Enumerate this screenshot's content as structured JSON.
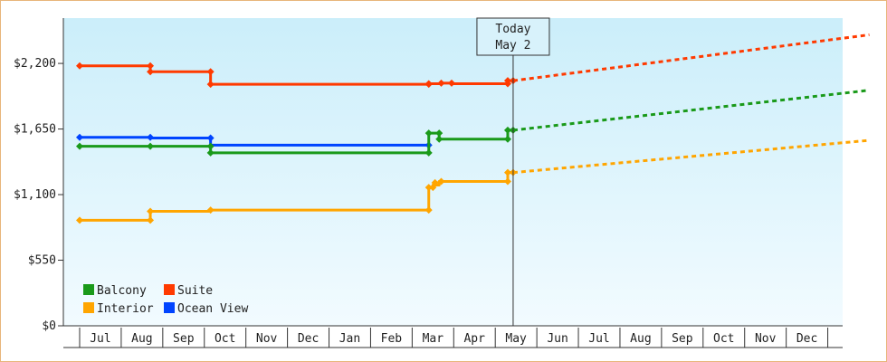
{
  "chart_data": {
    "type": "line",
    "title": "",
    "xlabel": "",
    "ylabel": "",
    "ylim": [
      0,
      2580
    ],
    "yticks": [
      {
        "value": 0,
        "label": "$0"
      },
      {
        "value": 550,
        "label": "$550"
      },
      {
        "value": 1100,
        "label": "$1,100"
      },
      {
        "value": 1650,
        "label": "$1,650"
      },
      {
        "value": 2200,
        "label": "$2,200"
      }
    ],
    "months": [
      "Jul",
      "Aug",
      "Sep",
      "Oct",
      "Nov",
      "Dec",
      "Jan",
      "Feb",
      "Mar",
      "Apr",
      "May",
      "Jun",
      "Jul",
      "Aug",
      "Sep",
      "Oct",
      "Nov",
      "Dec"
    ],
    "x_unit": "months",
    "today": {
      "label_line1": "Today",
      "label_line2": "May 2",
      "x": 9.93
    },
    "legend_position": "bottom-left",
    "grid": false,
    "colors": {
      "Balcony": "#1a9a1a",
      "Suite": "#ff3a00",
      "Interior": "#ffa500",
      "Ocean View": "#0044ff"
    },
    "series": [
      {
        "name": "Suite",
        "history": [
          [
            -0.5,
            2180
          ],
          [
            1.2,
            2180
          ],
          [
            1.2,
            2130
          ],
          [
            2.65,
            2130
          ],
          [
            2.65,
            2025
          ],
          [
            7.9,
            2025
          ],
          [
            7.9,
            2030
          ],
          [
            8.2,
            2030
          ],
          [
            8.2,
            2035
          ],
          [
            8.45,
            2035
          ],
          [
            8.45,
            2030
          ],
          [
            9.8,
            2030
          ],
          [
            9.8,
            2055
          ],
          [
            9.93,
            2055
          ]
        ],
        "markers": [
          [
            -0.5,
            2180
          ],
          [
            1.2,
            2180
          ],
          [
            1.2,
            2130
          ],
          [
            2.65,
            2130
          ],
          [
            2.65,
            2025
          ],
          [
            7.9,
            2025
          ],
          [
            7.9,
            2030
          ],
          [
            8.2,
            2035
          ],
          [
            8.45,
            2035
          ],
          [
            9.8,
            2030
          ],
          [
            9.8,
            2055
          ],
          [
            9.93,
            2055
          ]
        ],
        "forecast": [
          [
            9.93,
            2055
          ],
          [
            18.5,
            2440
          ]
        ]
      },
      {
        "name": "Ocean View",
        "history": [
          [
            -0.5,
            1580
          ],
          [
            1.2,
            1580
          ],
          [
            1.2,
            1575
          ],
          [
            2.65,
            1575
          ],
          [
            2.65,
            1515
          ],
          [
            7.9,
            1515
          ]
        ],
        "markers": [
          [
            -0.5,
            1580
          ],
          [
            1.2,
            1580
          ],
          [
            2.65,
            1575
          ],
          [
            7.9,
            1515
          ]
        ],
        "forecast": []
      },
      {
        "name": "Balcony",
        "history": [
          [
            -0.5,
            1505
          ],
          [
            2.65,
            1505
          ],
          [
            2.65,
            1450
          ],
          [
            7.9,
            1450
          ],
          [
            7.9,
            1615
          ],
          [
            8.15,
            1615
          ],
          [
            8.15,
            1565
          ],
          [
            9.8,
            1565
          ],
          [
            9.8,
            1640
          ],
          [
            9.93,
            1640
          ]
        ],
        "markers": [
          [
            -0.5,
            1505
          ],
          [
            1.2,
            1505
          ],
          [
            2.65,
            1505
          ],
          [
            2.65,
            1450
          ],
          [
            7.9,
            1450
          ],
          [
            7.9,
            1615
          ],
          [
            8.15,
            1615
          ],
          [
            8.15,
            1565
          ],
          [
            9.8,
            1565
          ],
          [
            9.8,
            1640
          ],
          [
            9.93,
            1640
          ]
        ],
        "forecast": [
          [
            9.93,
            1640
          ],
          [
            18.5,
            1975
          ]
        ]
      },
      {
        "name": "Interior",
        "history": [
          [
            -0.5,
            885
          ],
          [
            1.2,
            885
          ],
          [
            1.2,
            960
          ],
          [
            2.65,
            960
          ],
          [
            2.65,
            970
          ],
          [
            7.9,
            970
          ],
          [
            7.9,
            1160
          ],
          [
            8.0,
            1160
          ],
          [
            8.0,
            1180
          ],
          [
            8.15,
            1180
          ],
          [
            8.15,
            1210
          ],
          [
            9.8,
            1210
          ],
          [
            9.8,
            1285
          ],
          [
            9.93,
            1285
          ]
        ],
        "markers": [
          [
            -0.5,
            885
          ],
          [
            1.2,
            885
          ],
          [
            1.2,
            960
          ],
          [
            2.65,
            970
          ],
          [
            7.9,
            970
          ],
          [
            7.9,
            1160
          ],
          [
            8.0,
            1160
          ],
          [
            8.05,
            1200
          ],
          [
            8.2,
            1210
          ],
          [
            9.8,
            1210
          ],
          [
            9.8,
            1285
          ],
          [
            9.93,
            1285
          ]
        ],
        "forecast": [
          [
            9.93,
            1285
          ],
          [
            18.5,
            1555
          ]
        ]
      }
    ],
    "legend": [
      {
        "name": "Balcony",
        "color": "#1a9a1a"
      },
      {
        "name": "Suite",
        "color": "#ff3a00"
      },
      {
        "name": "Interior",
        "color": "#ffa500"
      },
      {
        "name": "Ocean View",
        "color": "#0044ff"
      }
    ]
  }
}
